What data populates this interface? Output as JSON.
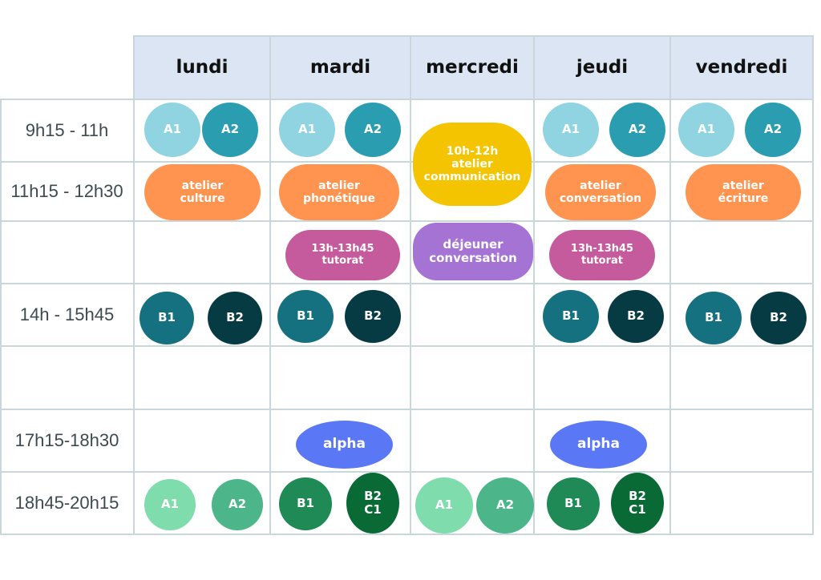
{
  "days": [
    "lundi",
    "mardi",
    "mercredi",
    "jeudi",
    "vendredi"
  ],
  "times": [
    "9h15 - 11h",
    "11h15 - 12h30",
    "",
    "14h - 15h45",
    "",
    "17h15-18h30",
    "18h45-20h15"
  ],
  "colors": {
    "a_light": "#8fd4e0",
    "a_dark": "#2a9db1",
    "atelier_orange": "#ff9450",
    "atelier_yellow": "#f5c400",
    "tutorat_pink": "#c55a9c",
    "dejeuner_purple": "#a573d4",
    "b1": "#15717f",
    "b2": "#073b44",
    "alpha_blue": "#5a78f5",
    "evening_a1": "#7fdcac",
    "evening_a2": "#4cb58a",
    "evening_b1": "#1f8a55",
    "evening_b2": "#0a6a36",
    "header_bg": "#dbe5f3"
  },
  "cells": {
    "lundi_a1": "A1",
    "lundi_a2": "A2",
    "mardi_a1": "A1",
    "mardi_a2": "A2",
    "jeudi_a1": "A1",
    "jeudi_a2": "A2",
    "vendredi_a1": "A1",
    "vendredi_a2": "A2",
    "mercredi_atelier": "10h-12h\natelier\ncommunication",
    "lundi_atelier": "atelier\nculture",
    "mardi_atelier": "atelier\nphonétique",
    "jeudi_atelier": "atelier\nconversation",
    "vendredi_atelier": "atelier\nécriture",
    "mardi_tutorat": "13h-13h45\ntutorat",
    "jeudi_tutorat": "13h-13h45\ntutorat",
    "mercredi_dejeuner": "déjeuner\nconversation",
    "lundi_b1": "B1",
    "lundi_b2": "B2",
    "mardi_b1": "B1",
    "mardi_b2": "B2",
    "jeudi_b1": "B1",
    "jeudi_b2": "B2",
    "vendredi_b1": "B1",
    "vendredi_b2": "B2",
    "mardi_alpha": "alpha",
    "jeudi_alpha": "alpha",
    "lundi_eve_a1": "A1",
    "lundi_eve_a2": "A2",
    "mardi_eve_b1": "B1",
    "mardi_eve_b2c1": "B2\nC1",
    "mercredi_eve_a1": "A1",
    "mercredi_eve_a2": "A2",
    "jeudi_eve_b1": "B1",
    "jeudi_eve_b2c1": "B2\nC1"
  }
}
